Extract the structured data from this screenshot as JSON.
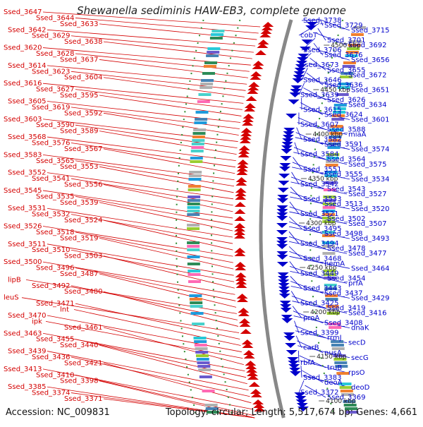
{
  "title": "Shewanella sediminis HAW-EB3, complete genome",
  "accession_label": "Accession: NC_009831",
  "topology_label": "Topology: circular; Length: 5,517,674 bp; Genes: 4,661",
  "colors": {
    "left": "#d40000",
    "right": "#0000cc",
    "axis": "#888888"
  },
  "kbp_labels": [
    "4500 kbp",
    "4450 kbp",
    "4400 kbp",
    "4350 kbp",
    "4300 kbp",
    "4250 kbp",
    "4200 kbp",
    "4150 kbp",
    "4100 kbp"
  ],
  "left_labels": [
    "Ssed_3647",
    "Ssed_3644",
    "Ssed_3633",
    "Ssed_3642",
    "Ssed_3629",
    "Ssed_3638",
    "Ssed_3620",
    "Ssed_3628",
    "Ssed_3637",
    "Ssed_3614",
    "Ssed_3623",
    "Ssed_3604",
    "Ssed_3616",
    "Ssed_3627",
    "Ssed_3595",
    "Ssed_3605",
    "Ssed_3619",
    "Ssed_3592",
    "Ssed_3603",
    "Ssed_3590",
    "Ssed_3589",
    "Ssed_3568",
    "Ssed_3576",
    "Ssed_3567",
    "Ssed_3583",
    "Ssed_3565",
    "Ssed_3553",
    "Ssed_3552",
    "Ssed_3541",
    "Ssed_3556",
    "Ssed_3545",
    "Ssed_3535",
    "Ssed_3539",
    "Ssed_3531",
    "Ssed_3532",
    "Ssed_3524",
    "Ssed_3526",
    "Ssed_3518",
    "Ssed_3519",
    "Ssed_3511",
    "Ssed_3510",
    "Ssed_3503",
    "Ssed_3500",
    "Ssed_3496",
    "Ssed_3487",
    "lipB",
    "Ssed_3492",
    "Ssed_3480",
    "leuS",
    "Ssed_3471",
    "lnt",
    "Ssed_3470",
    "ipk",
    "Ssed_3461",
    "Ssed_3463",
    "Ssed_3455",
    "Ssed_3440",
    "Ssed_3439",
    "Ssed_3436",
    "Ssed_3421",
    "Ssed_3413",
    "Ssed_3410",
    "Ssed_3398",
    "Ssed_3385",
    "Ssed_3374",
    "Ssed_3371"
  ],
  "right_labels": [
    "Ssed_3738",
    "Ssed_3729",
    "Ssed_3715",
    "cobT",
    "Ssed_3701",
    "Ssed_3692",
    "Ssed_3706",
    "Ssed_3676",
    "Ssed_3656",
    "Ssed_3673",
    "Ssed_3655",
    "Ssed_3672",
    "Ssed_3646",
    "Ssed_3636",
    "Ssed_3651",
    "Ssed_3639",
    "Ssed_3626",
    "Ssed_3634",
    "Ssed_3615",
    "Ssed_3624",
    "Ssed_3601",
    "Ssed_3607",
    "Ssed_3588",
    "miaA",
    "Ssed_3582",
    "Ssed_3591",
    "Ssed_3574",
    "Ssed_3584",
    "Ssed_3564",
    "Ssed_3575",
    "Ssed_3551",
    "Ssed_3555",
    "Ssed_3534",
    "Ssed_3542",
    "Ssed_3543",
    "Ssed_3527",
    "Ssed_3533",
    "Ssed_3513",
    "Ssed_3520",
    "Ssed_3521",
    "Ssed_3502",
    "Ssed_3507",
    "Ssed_3495",
    "Ssed_3498",
    "Ssed_3493",
    "Ssed_3494",
    "Ssed_3478",
    "Ssed_3477",
    "Ssed_3468",
    "hemA",
    "Ssed_3464",
    "Ssed_3449",
    "Ssed_3454",
    "prfA",
    "Ssed_3443",
    "Ssed_3437",
    "Ssed_3429",
    "Ssed_3425",
    "Ssed_3419",
    "Ssed_3416",
    "proA",
    "Ssed_3408",
    "dnaK",
    "Ssed_3399",
    "rrmJ",
    "secD",
    "carB",
    "nusA",
    "secG",
    "rbfA",
    "truB",
    "rpsO",
    "Ssed_3383",
    "deoA",
    "deoD",
    "Ssed_3372",
    "Ssed_3369"
  ]
}
